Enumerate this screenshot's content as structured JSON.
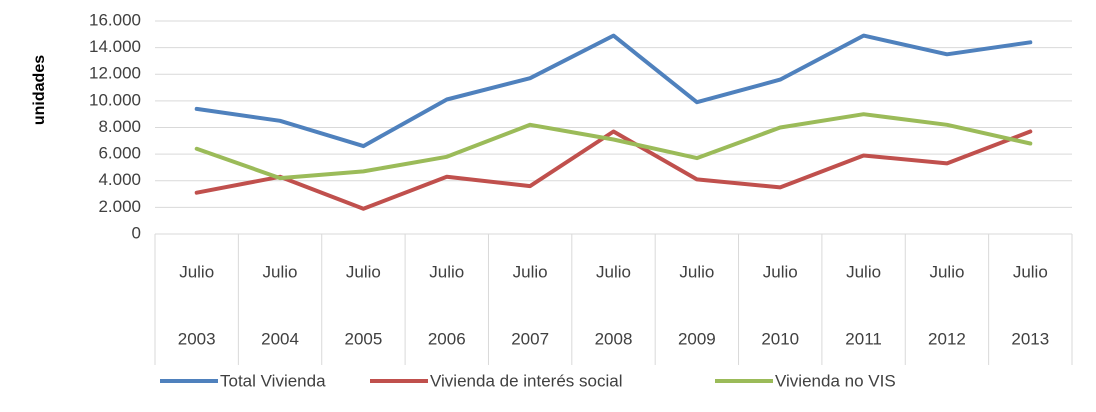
{
  "chart_data": {
    "type": "line",
    "y_label": "unidades",
    "categories": [
      [
        "Julio",
        "2003"
      ],
      [
        "Julio",
        "2004"
      ],
      [
        "Julio",
        "2005"
      ],
      [
        "Julio",
        "2006"
      ],
      [
        "Julio",
        "2007"
      ],
      [
        "Julio",
        "2008"
      ],
      [
        "Julio",
        "2009"
      ],
      [
        "Julio",
        "2010"
      ],
      [
        "Julio",
        "2011"
      ],
      [
        "Julio",
        "2012"
      ],
      [
        "Julio",
        "2013"
      ]
    ],
    "series": [
      {
        "name": "Total Vivienda",
        "color": "#4f81bd",
        "values": [
          9400,
          8500,
          6600,
          10100,
          11700,
          14900,
          9900,
          11600,
          14900,
          13500,
          14400
        ]
      },
      {
        "name": "Vivienda de interés social",
        "color": "#c0504d",
        "values": [
          3100,
          4300,
          1900,
          4300,
          3600,
          7700,
          4100,
          3500,
          5900,
          5300,
          7700
        ]
      },
      {
        "name": "Vivienda no VIS",
        "color": "#9bbb59",
        "values": [
          6400,
          4200,
          4700,
          5800,
          8200,
          7100,
          5700,
          8000,
          9000,
          8200,
          6800
        ]
      }
    ],
    "ylim": [
      0,
      16000
    ],
    "yticks": [
      0,
      {
        "value": 2000,
        "label": "2.000"
      },
      {
        "value": 4000,
        "label": "4.000"
      },
      {
        "value": 6000,
        "label": "6.000"
      },
      {
        "value": 8000,
        "label": "8.000"
      },
      {
        "value": 10000,
        "label": "10.000"
      },
      {
        "value": 12000,
        "label": "12.000"
      },
      {
        "value": 14000,
        "label": "14.000"
      },
      {
        "value": 16000,
        "label": "16.000"
      }
    ],
    "grid": true,
    "legend": "bottom"
  }
}
